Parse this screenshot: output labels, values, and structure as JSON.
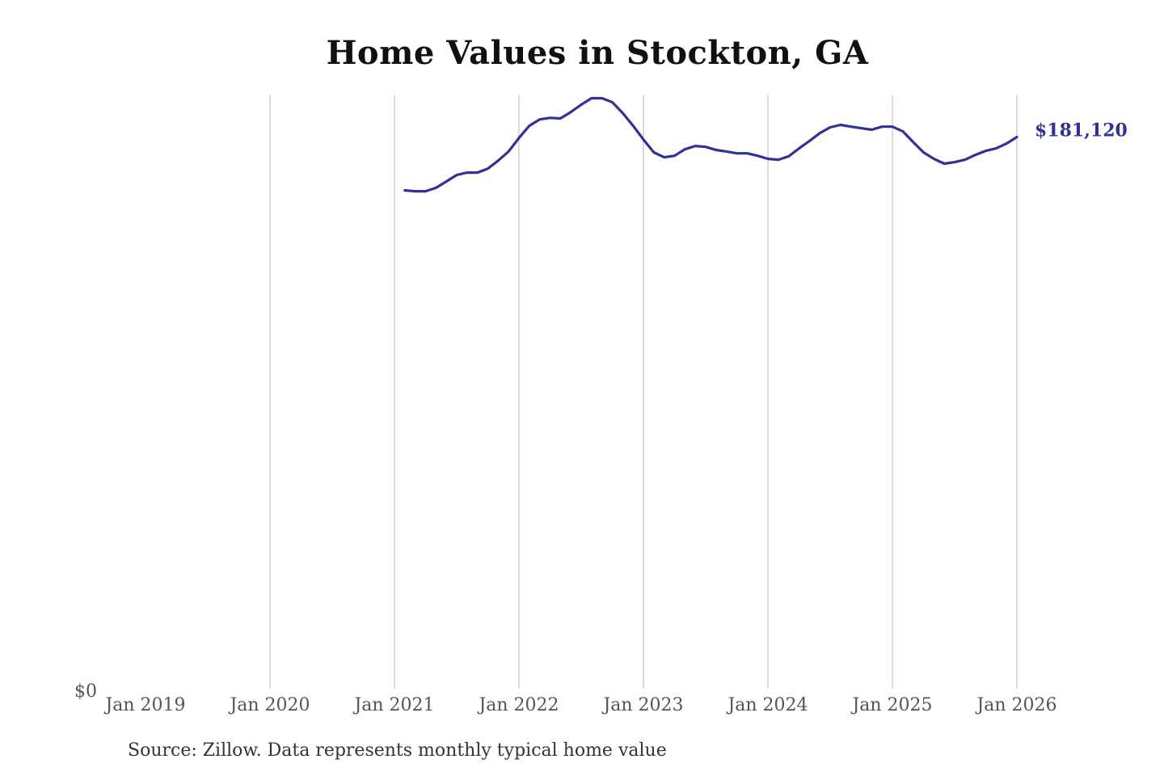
{
  "chart_data": {
    "type": "line",
    "title": "Home Values in Stockton, GA",
    "xlabel": "",
    "ylabel": "",
    "x_ticks": [
      "Jan 2019",
      "Jan 2020",
      "Jan 2021",
      "Jan 2022",
      "Jan 2023",
      "Jan 2024",
      "Jan 2025",
      "Jan 2026"
    ],
    "y_ticks": [
      "$0"
    ],
    "xlim": [
      "2019-01",
      "2026-01"
    ],
    "ylim": [
      0,
      195000
    ],
    "grid": "vertical",
    "color": "#33309a",
    "end_label": "$181,120",
    "series": [
      {
        "name": "Typical home value",
        "x": [
          "2021-02",
          "2021-03",
          "2021-04",
          "2021-05",
          "2021-06",
          "2021-07",
          "2021-08",
          "2021-09",
          "2021-10",
          "2021-11",
          "2021-12",
          "2022-01",
          "2022-02",
          "2022-03",
          "2022-04",
          "2022-05",
          "2022-06",
          "2022-07",
          "2022-08",
          "2022-09",
          "2022-10",
          "2022-11",
          "2022-12",
          "2023-01",
          "2023-02",
          "2023-03",
          "2023-04",
          "2023-05",
          "2023-06",
          "2023-07",
          "2023-08",
          "2023-09",
          "2023-10",
          "2023-11",
          "2023-12",
          "2024-01",
          "2024-02",
          "2024-03",
          "2024-04",
          "2024-05",
          "2024-06",
          "2024-07",
          "2024-08",
          "2024-09",
          "2024-10",
          "2024-11",
          "2024-12",
          "2025-01",
          "2025-02",
          "2025-03",
          "2025-04",
          "2025-05",
          "2025-06",
          "2025-07",
          "2025-08",
          "2025-09",
          "2025-10",
          "2025-11",
          "2025-12",
          "2026-01"
        ],
        "values": [
          163700,
          163400,
          163400,
          164500,
          166600,
          168700,
          169500,
          169500,
          170800,
          173400,
          176400,
          180800,
          184800,
          186900,
          187400,
          187200,
          189300,
          191700,
          193800,
          193800,
          192500,
          189000,
          184800,
          180300,
          176100,
          174500,
          175000,
          177100,
          178200,
          177900,
          176900,
          176400,
          175800,
          175800,
          175000,
          174000,
          173700,
          174800,
          177400,
          179800,
          182400,
          184300,
          185100,
          184500,
          184000,
          183500,
          184500,
          184500,
          183000,
          179500,
          176100,
          174000,
          172400,
          172900,
          173700,
          175300,
          176600,
          177400,
          179000,
          181120
        ]
      }
    ],
    "source": "Source: Zillow. Data represents monthly typical home value"
  }
}
